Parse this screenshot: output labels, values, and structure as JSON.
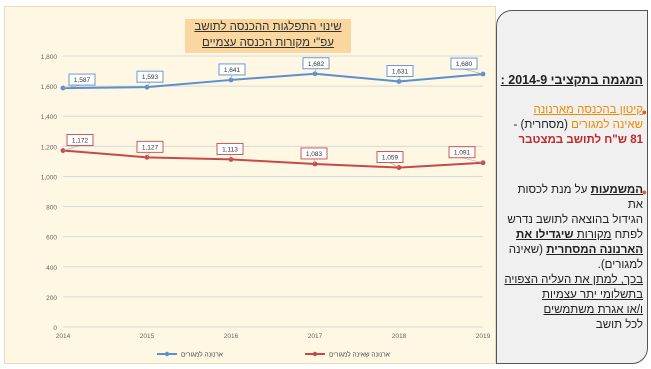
{
  "chart_data": {
    "type": "line",
    "title": "שינוי התפלגות ההכנסה לתושב",
    "subtitle": "עפ\"י מקורות הכנסה עצמיים",
    "categories": [
      "2014",
      "2015",
      "2016",
      "2017",
      "2018",
      "2019"
    ],
    "y_ticks": [
      "0",
      "200",
      "400",
      "600",
      "800",
      "1,000",
      "1,200",
      "1,400",
      "1,600",
      "1,800"
    ],
    "ylim": [
      0,
      1800
    ],
    "grid": true,
    "legend_position": "bottom",
    "series": [
      {
        "name": "ארנונה למגורים",
        "color": "#5b8fcd",
        "values": [
          1587,
          1593,
          1641,
          1682,
          1631,
          1680
        ],
        "labels": [
          "1,587",
          "1,593",
          "1,641",
          "1,682",
          "1,631",
          "1,680"
        ],
        "shown_labels": [
          "1,587",
          "1,593",
          "1,641",
          "1,682",
          "1,631",
          "1,680"
        ]
      },
      {
        "name": "ארנונה שאינה למגורים",
        "color": "#c8484a",
        "values": [
          1172,
          1127,
          1113,
          1083,
          1059,
          1091
        ],
        "labels": [
          "1,172",
          "1,127",
          "1,113",
          "1,083",
          "1,059",
          "1,091"
        ]
      }
    ]
  },
  "side_panel": {
    "heading": "המגמה בתקציבי 2014-9 :",
    "point1_line1": "קיטון בהכנסה מארנונה",
    "point1_line2a": "שאינה למגורים",
    "point1_line2b": " (מסחרית) -",
    "point1_line3": "81 ש\"ח לתושב במצטבר",
    "point2_word": "המשמעות",
    "point2_rest": " על מנת לכסות את",
    "point2_line2": "הגידול בהוצאה לתושב נדרש",
    "point2_line3a": "לפתח ",
    "point2_line3b": "מקורות",
    "point2_line3c": " שיגדילו את",
    "point2_line4a": "הארנונה המסחרית",
    "point2_line4b": " (שאינה",
    "point2_line5": "למגורים).",
    "point2_line6": "בכך, למתן את העליה הצפויה",
    "point2_line7": "בתשלומי יתר עצמיות",
    "point2_line8": "ו/או אגרת משתמשים",
    "point2_line9": "לכל תושב",
    "bullet": "●"
  }
}
